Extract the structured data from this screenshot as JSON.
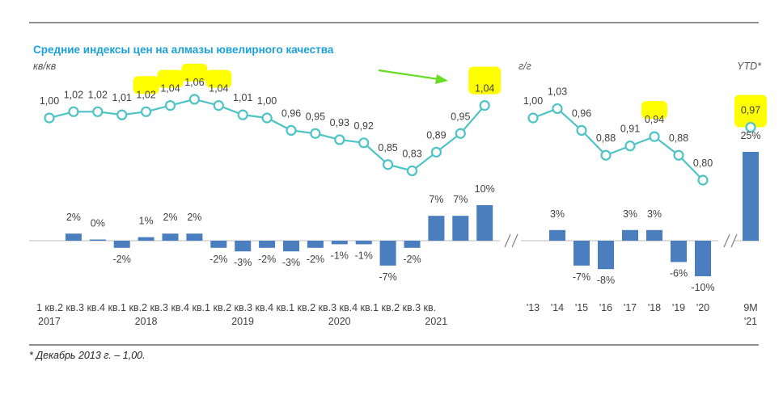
{
  "chart_data": {
    "type": "line+bar",
    "title": "Средние индексы цен на алмазы ювелирного качества",
    "footnote": "* Декабрь 2013 г. – 1,00.",
    "colors": {
      "title": "#1ba1d9",
      "line": "#4fc3c6",
      "bar": "#4a7ebf",
      "highlight": "#ffff00",
      "arrow": "#66dd22"
    },
    "panels": [
      {
        "unit_label": "кв/кв",
        "categories": [
          "1 кв.",
          "2 кв.",
          "3 кв.",
          "4 кв.",
          "1 кв.",
          "2 кв.",
          "3 кв.",
          "4 кв.",
          "1 кв.",
          "2 кв.",
          "3 кв.",
          "4 кв.",
          "1 кв.",
          "2 кв.",
          "3 кв.",
          "4 кв.",
          "1 кв.",
          "2 кв.",
          "3 кв."
        ],
        "category_labels": [
          "1",
          "кв.2",
          "кв.3",
          "кв.4",
          "кв.1",
          "кв.2",
          "кв.3",
          "кв.4",
          "кв.1",
          "кв.2",
          "кв.3",
          "кв.4",
          "кв.1",
          "кв.2",
          "кв.3",
          "кв.4",
          "кв.1",
          "кв.2",
          "кв.3 кв."
        ],
        "year_labels": [
          {
            "label": "2017",
            "index": 0
          },
          {
            "label": "2018",
            "index": 4
          },
          {
            "label": "2019",
            "index": 8
          },
          {
            "label": "2020",
            "index": 12
          },
          {
            "label": "2021",
            "index": 16
          }
        ],
        "index_series": {
          "values": [
            1.0,
            1.02,
            1.02,
            1.01,
            1.02,
            1.04,
            1.06,
            1.04,
            1.01,
            1.0,
            0.96,
            0.95,
            0.93,
            0.92,
            0.85,
            0.83,
            0.89,
            0.95,
            1.04
          ],
          "labels": [
            "1,00",
            "1,02",
            "1,02",
            "1,01",
            "1,02",
            "1,04",
            "1,06",
            "1,04",
            "1,01",
            "1,00",
            "0,96",
            "0,95",
            "0,93",
            "0,92",
            "0,85",
            "0,83",
            "0,89",
            "0,95",
            "1,04"
          ],
          "highlighted": [
            4,
            5,
            6,
            7,
            18
          ]
        },
        "change_series": {
          "values": [
            null,
            2,
            0,
            -2,
            1,
            2,
            2,
            -2,
            -3,
            -2,
            -3,
            -2,
            -1,
            -1,
            -7,
            -2,
            7,
            7,
            10
          ],
          "labels": [
            "",
            "2%",
            "0%",
            "-2%",
            "1%",
            "2%",
            "2%",
            "-2%",
            "-3%",
            "-2%",
            "-3%",
            "-2%",
            "-1%",
            "-1%",
            "-7%",
            "-2%",
            "7%",
            "7%",
            "10%"
          ]
        }
      },
      {
        "unit_label": "г/г",
        "categories": [
          "'13",
          "'14",
          "'15",
          "'16",
          "'17",
          "'18",
          "'19",
          "'20"
        ],
        "index_series": {
          "values": [
            1.0,
            1.03,
            0.96,
            0.88,
            0.91,
            0.94,
            0.88,
            0.8
          ],
          "labels": [
            "1,00",
            "1,03",
            "0,96",
            "0,88",
            "0,91",
            "0,94",
            "0,88",
            "0,80"
          ],
          "highlighted": [
            5
          ]
        },
        "change_series": {
          "values": [
            null,
            3,
            -7,
            -8,
            3,
            3,
            -6,
            -10
          ],
          "labels": [
            "",
            "3%",
            "-7%",
            "-8%",
            "3%",
            "3%",
            "-6%",
            "-10%"
          ]
        }
      },
      {
        "unit_label": "YTD*",
        "categories": [
          "9М '21"
        ],
        "category_lines": [
          "9М",
          "'21"
        ],
        "index_series": {
          "values": [
            0.97
          ],
          "labels": [
            "0,97"
          ],
          "highlighted": [
            0
          ]
        },
        "change_series": {
          "values": [
            25
          ],
          "labels": [
            "25%"
          ]
        }
      }
    ]
  }
}
